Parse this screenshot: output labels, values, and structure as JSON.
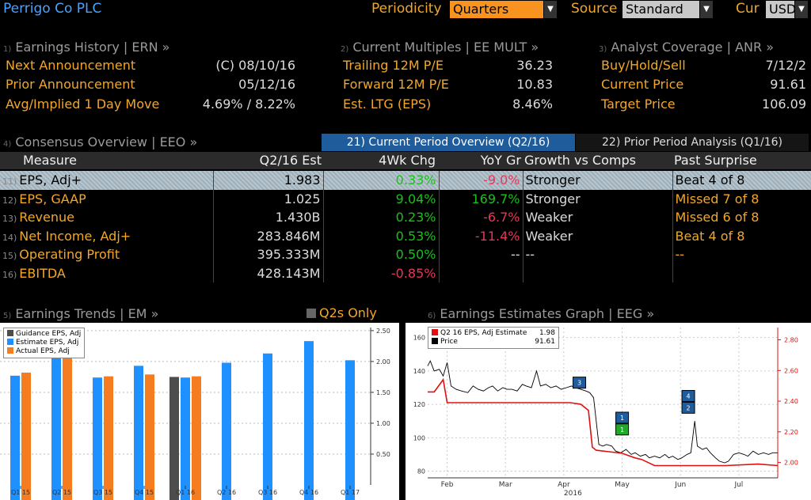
{
  "header": {
    "title": "Perrigo Co PLC",
    "periodicity_label": "Periodicity",
    "periodicity_value": "Quarters",
    "source_label": "Source",
    "source_value": "Standard",
    "cur_label": "Cur",
    "cur_value": "USD"
  },
  "earnings_history": {
    "num": "1)",
    "title": "Earnings History | ERN »",
    "rows": [
      {
        "label": "Next Announcement",
        "value": "(C)  08/10/16"
      },
      {
        "label": "Prior Announcement",
        "value": "05/12/16"
      },
      {
        "label": "Avg/Implied 1 Day Move",
        "value": "4.69% / 8.22%"
      }
    ]
  },
  "current_multiples": {
    "num": "2)",
    "title": "Current Multiples | EE MULT »",
    "rows": [
      {
        "label": "Trailing 12M P/E",
        "value": "36.23"
      },
      {
        "label": "Forward 12M P/E",
        "value": "10.83"
      },
      {
        "label": "Est. LTG (EPS)",
        "value": "8.46%"
      }
    ]
  },
  "analyst_coverage": {
    "num": "3)",
    "title": "Analyst Coverage | ANR »",
    "rows": [
      {
        "label": "Buy/Hold/Sell",
        "value": "7/12/2"
      },
      {
        "label": "Current Price",
        "value": "91.61"
      },
      {
        "label": "Target Price",
        "value": "106.09"
      }
    ]
  },
  "consensus": {
    "num": "4)",
    "title": "Consensus Overview | EEO »",
    "tab_current": "21) Current Period Overview (Q2/16)",
    "tab_prior": "22) Prior Period Analysis (Q1/16)",
    "headers": [
      "Measure",
      "Q2/16 Est",
      "4Wk Chg",
      "YoY Gr",
      "Growth vs Comps",
      "Past Surprise"
    ],
    "rows": [
      {
        "num": "11)",
        "measure": "EPS, Adj+",
        "est": "1.983",
        "chg": "0.33%",
        "chg_sign": "pos",
        "yoy": "-9.0%",
        "yoy_sign": "neg",
        "growth": "Stronger",
        "past": "Beat 4 of 8"
      },
      {
        "num": "12)",
        "measure": "EPS, GAAP",
        "est": "1.025",
        "chg": "9.04%",
        "chg_sign": "pos",
        "yoy": "169.7%",
        "yoy_sign": "pos",
        "growth": "Stronger",
        "past": "Missed 7 of 8"
      },
      {
        "num": "13)",
        "measure": "Revenue",
        "est": "1.430B",
        "chg": "0.23%",
        "chg_sign": "pos",
        "yoy": "-6.7%",
        "yoy_sign": "neg",
        "growth": "Weaker",
        "past": "Missed 6 of 8"
      },
      {
        "num": "14)",
        "measure": "Net Income, Adj+",
        "est": "283.846M",
        "chg": "0.53%",
        "chg_sign": "pos",
        "yoy": "-11.4%",
        "yoy_sign": "neg",
        "growth": "Weaker",
        "past": "Beat 4 of 8"
      },
      {
        "num": "15)",
        "measure": "Operating Profit",
        "est": "395.333M",
        "chg": "0.50%",
        "chg_sign": "pos",
        "yoy": "--",
        "yoy_sign": "dim",
        "growth": "--",
        "past": "--"
      },
      {
        "num": "16)",
        "measure": "EBITDA",
        "est": "428.143M",
        "chg": "-0.85%",
        "chg_sign": "neg",
        "yoy": "",
        "yoy_sign": "dim",
        "growth": "",
        "past": ""
      }
    ]
  },
  "earnings_trends": {
    "num": "5)",
    "title": "Earnings Trends | EM »",
    "toggle_label": "Q2s Only",
    "legend": [
      "Guidance EPS, Adj",
      "Estimate EPS, Adj",
      "Actual EPS, Adj"
    ],
    "colors": {
      "guidance": "#4d4d4d",
      "estimate": "#1e90ff",
      "actual": "#f57c1f"
    }
  },
  "earnings_graph": {
    "num": "6)",
    "title": "Earnings Estimates Graph | EEG »",
    "legend": [
      {
        "name": "Q2 16 EPS, Adj Estimate",
        "value": "1.98",
        "color": "#e01010"
      },
      {
        "name": "Price",
        "value": "91.61",
        "color": "#000000"
      }
    ],
    "year_label": "2016"
  },
  "chart_data": [
    {
      "type": "bar",
      "categories": [
        "Q1 15",
        "Q2 15",
        "Q3 15",
        "Q4 15",
        "Q1 16",
        "Q2 16",
        "Q3 16",
        "Q4 16",
        "Q1 17"
      ],
      "series": [
        {
          "name": "Guidance EPS, Adj",
          "values": [
            null,
            null,
            null,
            null,
            1.75,
            null,
            null,
            null,
            null
          ]
        },
        {
          "name": "Estimate EPS, Adj",
          "values": [
            1.77,
            2.24,
            1.74,
            1.93,
            1.74,
            1.98,
            2.13,
            2.33,
            2.02
          ]
        },
        {
          "name": "Actual EPS, Adj",
          "values": [
            1.82,
            2.19,
            1.76,
            1.79,
            1.76,
            null,
            null,
            null,
            null
          ]
        }
      ],
      "yticks": [
        "0.50",
        "1.00",
        "1.50",
        "2.00",
        "2.50"
      ],
      "ylim": [
        0,
        2.55
      ],
      "axis_position": "right"
    },
    {
      "type": "line",
      "x_ticks": [
        "Feb",
        "Mar",
        "Apr",
        "May",
        "Jun",
        "Jul"
      ],
      "year": "2016",
      "left_axis": {
        "ticks": [
          "80",
          "100",
          "120",
          "140",
          "160"
        ],
        "range": [
          76,
          166
        ]
      },
      "right_axis": {
        "ticks": [
          "2.00",
          "2.20",
          "2.40",
          "2.60",
          "2.80"
        ],
        "range": [
          1.9,
          2.88
        ]
      },
      "series": [
        {
          "name": "Price",
          "axis": "left",
          "points": [
            [
              0,
              143
            ],
            [
              2,
              146
            ],
            [
              5,
              140
            ],
            [
              9,
              141
            ],
            [
              12,
              137
            ],
            [
              15,
              145
            ],
            [
              18,
              131
            ],
            [
              22,
              129
            ],
            [
              26,
              128
            ],
            [
              31,
              127
            ],
            [
              35,
              131
            ],
            [
              39,
              129
            ],
            [
              43,
              128
            ],
            [
              47,
              130
            ],
            [
              50,
              131
            ],
            [
              54,
              128
            ],
            [
              58,
              130
            ],
            [
              61,
              129
            ],
            [
              65,
              129
            ],
            [
              69,
              128
            ],
            [
              73,
              132
            ],
            [
              76,
              131
            ],
            [
              80,
              130
            ],
            [
              84,
              140
            ],
            [
              87,
              131
            ],
            [
              91,
              132
            ],
            [
              95,
              130
            ],
            [
              99,
              131
            ],
            [
              103,
              129
            ],
            [
              107,
              130
            ],
            [
              111,
              131
            ],
            [
              114,
              130
            ],
            [
              118,
              129
            ],
            [
              122,
              128
            ],
            [
              125,
              127
            ],
            [
              128,
              124
            ],
            [
              130,
              110
            ],
            [
              132,
              96
            ],
            [
              135,
              95
            ],
            [
              138,
              96
            ],
            [
              142,
              95
            ],
            [
              145,
              92
            ],
            [
              149,
              91
            ],
            [
              153,
              93
            ],
            [
              157,
              90
            ],
            [
              160,
              91
            ],
            [
              164,
              89
            ],
            [
              168,
              90
            ],
            [
              171,
              88
            ],
            [
              175,
              89
            ],
            [
              179,
              88
            ],
            [
              183,
              90
            ],
            [
              186,
              88
            ],
            [
              189,
              89
            ],
            [
              193,
              87
            ],
            [
              196,
              88
            ],
            [
              200,
              90
            ],
            [
              203,
              91
            ],
            [
              206,
              110
            ],
            [
              208,
              95
            ],
            [
              212,
              93
            ],
            [
              215,
              94
            ],
            [
              218,
              91
            ],
            [
              222,
              88
            ],
            [
              225,
              86
            ],
            [
              229,
              85
            ],
            [
              232,
              86
            ],
            [
              236,
              90
            ],
            [
              240,
              91
            ],
            [
              244,
              90
            ],
            [
              247,
              89
            ],
            [
              251,
              92
            ],
            [
              255,
              90
            ],
            [
              259,
              91
            ],
            [
              263,
              90
            ],
            [
              266,
              91
            ],
            [
              270,
              91
            ]
          ]
        },
        {
          "name": "Q2 16 EPS, Adj Estimate",
          "axis": "right",
          "points": [
            [
              0,
              2.46
            ],
            [
              5,
              2.46
            ],
            [
              12,
              2.54
            ],
            [
              15,
              2.39
            ],
            [
              30,
              2.39
            ],
            [
              60,
              2.39
            ],
            [
              95,
              2.39
            ],
            [
              110,
              2.39
            ],
            [
              118,
              2.38
            ],
            [
              124,
              2.34
            ],
            [
              127,
              2.1
            ],
            [
              130,
              2.08
            ],
            [
              140,
              2.07
            ],
            [
              150,
              2.06
            ],
            [
              160,
              2.03
            ],
            [
              165,
              2.02
            ],
            [
              175,
              1.98
            ],
            [
              190,
              1.98
            ],
            [
              200,
              1.98
            ],
            [
              215,
              1.98
            ],
            [
              230,
              1.98
            ],
            [
              255,
              1.99
            ],
            [
              270,
              1.98
            ]
          ]
        }
      ],
      "event_markers": [
        {
          "label": "3",
          "x": 117,
          "y": 133,
          "color": "#1f5c9c"
        },
        {
          "label": "1",
          "x": 150,
          "y": 112,
          "color": "#1f5c9c"
        },
        {
          "label": "1",
          "x": 150,
          "y": 105,
          "color": "#22a82a"
        },
        {
          "label": "4",
          "x": 201,
          "y": 125,
          "color": "#1f5c9c"
        },
        {
          "label": "2",
          "x": 201,
          "y": 118,
          "color": "#1f5c9c"
        }
      ]
    }
  ]
}
